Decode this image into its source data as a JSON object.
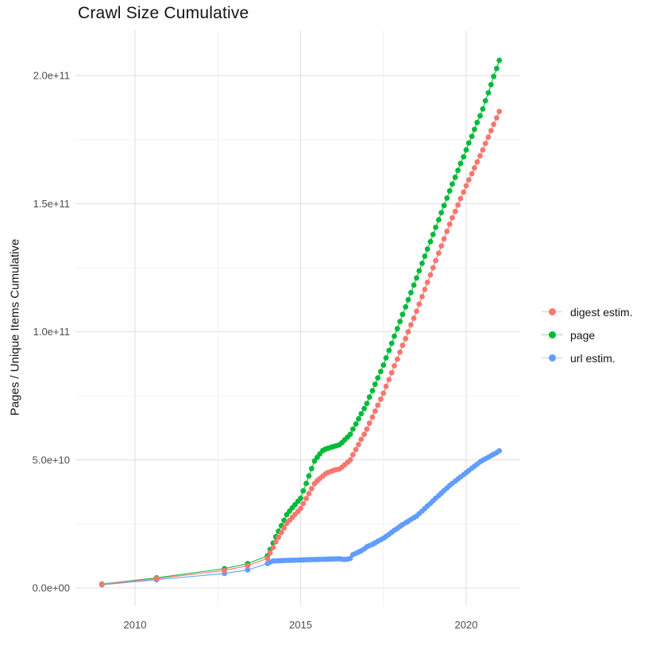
{
  "chart_data": {
    "type": "scatter",
    "title": "Crawl Size Cumulative",
    "xlabel": "",
    "ylabel": "Pages / Unique Items Cumulative",
    "legend_position": "right-center",
    "grid": "major+minor, light gray on white",
    "value_unit": "pages; point values stored in billions (1e9)",
    "xlim": [
      2008.2,
      2021.6
    ],
    "ylim_billions": [
      -7,
      219
    ],
    "x_ticks": [
      {
        "label": "2010",
        "year": 2010
      },
      {
        "label": "2015",
        "year": 2015
      },
      {
        "label": "2020",
        "year": 2020
      }
    ],
    "x_minor_years": [
      2012.5,
      2017.5
    ],
    "y_ticks": [
      {
        "label": "0.0e+00",
        "billions": 0
      },
      {
        "label": "5.0e+10",
        "billions": 50
      },
      {
        "label": "1.0e+11",
        "billions": 100
      },
      {
        "label": "1.5e+11",
        "billions": 150
      },
      {
        "label": "2.0e+11",
        "billions": 200
      }
    ],
    "y_minor_billions": [
      25,
      75,
      125,
      175
    ],
    "colors": {
      "digest": "#F8766D",
      "page": "#00BA38",
      "url": "#619CFF",
      "grid_major": "#E2E2E2",
      "grid_minor": "#F0F0F0",
      "tick_text": "#4D4D4D"
    },
    "series": [
      {
        "name": "digest estim.",
        "color": "#F8766D",
        "points_year_billion": [
          [
            2009.0,
            1.4
          ],
          [
            2010.65,
            3.6
          ],
          [
            2012.7,
            6.8
          ],
          [
            2013.4,
            8.7
          ],
          [
            2014.0,
            11.5
          ],
          [
            2014.08,
            13.7
          ],
          [
            2014.17,
            15.8
          ],
          [
            2014.25,
            18
          ],
          [
            2014.33,
            19.8
          ],
          [
            2014.42,
            21.6
          ],
          [
            2014.5,
            23.4
          ],
          [
            2014.58,
            25.2
          ],
          [
            2014.67,
            26.4
          ],
          [
            2014.75,
            27.5
          ],
          [
            2014.83,
            28.7
          ],
          [
            2014.92,
            29.8
          ],
          [
            2015.0,
            31
          ],
          [
            2015.08,
            32.9
          ],
          [
            2015.17,
            34.9
          ],
          [
            2015.25,
            36.8
          ],
          [
            2015.33,
            38.7
          ],
          [
            2015.42,
            40.7
          ],
          [
            2015.5,
            41.8
          ],
          [
            2015.58,
            42.7
          ],
          [
            2015.67,
            43.6
          ],
          [
            2015.75,
            44.5
          ],
          [
            2015.83,
            45.1
          ],
          [
            2015.92,
            45.5
          ],
          [
            2016.0,
            45.9
          ],
          [
            2016.08,
            46.2
          ],
          [
            2016.17,
            46.4
          ],
          [
            2016.25,
            47.1
          ],
          [
            2016.33,
            48
          ],
          [
            2016.42,
            49
          ],
          [
            2016.5,
            50
          ],
          [
            2016.58,
            52
          ],
          [
            2016.67,
            54
          ],
          [
            2016.75,
            56
          ],
          [
            2016.83,
            58
          ],
          [
            2016.92,
            60
          ],
          [
            2017.0,
            62
          ],
          [
            2017.08,
            64.3
          ],
          [
            2017.17,
            66.7
          ],
          [
            2017.25,
            69
          ],
          [
            2017.33,
            71.3
          ],
          [
            2017.42,
            73.7
          ],
          [
            2017.5,
            76
          ],
          [
            2017.58,
            78.7
          ],
          [
            2017.67,
            81.3
          ],
          [
            2017.75,
            84
          ],
          [
            2017.83,
            86.7
          ],
          [
            2017.92,
            89.3
          ],
          [
            2018.0,
            92
          ],
          [
            2018.08,
            94.7
          ],
          [
            2018.17,
            97.3
          ],
          [
            2018.25,
            100
          ],
          [
            2018.33,
            102.7
          ],
          [
            2018.42,
            105.3
          ],
          [
            2018.5,
            108
          ],
          [
            2018.58,
            110.8
          ],
          [
            2018.67,
            113.7
          ],
          [
            2018.75,
            116.5
          ],
          [
            2018.83,
            119.3
          ],
          [
            2018.92,
            122.2
          ],
          [
            2019.0,
            125
          ],
          [
            2019.08,
            127.8
          ],
          [
            2019.17,
            130.7
          ],
          [
            2019.25,
            133.5
          ],
          [
            2019.33,
            136.3
          ],
          [
            2019.42,
            139.2
          ],
          [
            2019.5,
            142
          ],
          [
            2019.58,
            144.5
          ],
          [
            2019.67,
            147
          ],
          [
            2019.75,
            149.5
          ],
          [
            2019.83,
            152
          ],
          [
            2019.92,
            154.5
          ],
          [
            2020.0,
            157
          ],
          [
            2020.08,
            159.3
          ],
          [
            2020.17,
            161.7
          ],
          [
            2020.25,
            164
          ],
          [
            2020.33,
            166.3
          ],
          [
            2020.42,
            168.7
          ],
          [
            2020.5,
            171
          ],
          [
            2020.58,
            173.5
          ],
          [
            2020.67,
            176
          ],
          [
            2020.75,
            178.5
          ],
          [
            2020.83,
            181
          ],
          [
            2020.92,
            183.5
          ],
          [
            2021.0,
            186
          ]
        ]
      },
      {
        "name": "page",
        "color": "#00BA38",
        "points_year_billion": [
          [
            2009.0,
            1.5
          ],
          [
            2010.65,
            3.9
          ],
          [
            2012.7,
            7.5
          ],
          [
            2013.4,
            9.5
          ],
          [
            2014.0,
            12.5
          ],
          [
            2014.08,
            15
          ],
          [
            2014.17,
            17.5
          ],
          [
            2014.25,
            20
          ],
          [
            2014.33,
            22.1
          ],
          [
            2014.42,
            24.3
          ],
          [
            2014.5,
            26.4
          ],
          [
            2014.58,
            28.6
          ],
          [
            2014.67,
            30
          ],
          [
            2014.75,
            31.3
          ],
          [
            2014.83,
            32.5
          ],
          [
            2014.92,
            33.8
          ],
          [
            2015.0,
            35
          ],
          [
            2015.08,
            37.9
          ],
          [
            2015.17,
            40.8
          ],
          [
            2015.25,
            43.7
          ],
          [
            2015.33,
            46.6
          ],
          [
            2015.42,
            49.5
          ],
          [
            2015.5,
            51
          ],
          [
            2015.58,
            52.3
          ],
          [
            2015.67,
            53.6
          ],
          [
            2015.75,
            54.2
          ],
          [
            2015.83,
            54.5
          ],
          [
            2015.92,
            54.9
          ],
          [
            2016.0,
            55.2
          ],
          [
            2016.08,
            55.5
          ],
          [
            2016.17,
            55.9
          ],
          [
            2016.25,
            56.7
          ],
          [
            2016.33,
            57.8
          ],
          [
            2016.42,
            58.9
          ],
          [
            2016.5,
            60
          ],
          [
            2016.58,
            62
          ],
          [
            2016.67,
            64
          ],
          [
            2016.75,
            66
          ],
          [
            2016.83,
            68
          ],
          [
            2016.92,
            70
          ],
          [
            2017.0,
            72
          ],
          [
            2017.08,
            74.5
          ],
          [
            2017.17,
            77
          ],
          [
            2017.25,
            79.5
          ],
          [
            2017.33,
            82
          ],
          [
            2017.42,
            84.5
          ],
          [
            2017.5,
            87
          ],
          [
            2017.58,
            89.8
          ],
          [
            2017.67,
            92.7
          ],
          [
            2017.75,
            95.5
          ],
          [
            2017.83,
            98.3
          ],
          [
            2017.92,
            101.2
          ],
          [
            2018.0,
            104
          ],
          [
            2018.08,
            106.8
          ],
          [
            2018.17,
            109.7
          ],
          [
            2018.25,
            112.5
          ],
          [
            2018.33,
            115.3
          ],
          [
            2018.42,
            118.2
          ],
          [
            2018.5,
            121
          ],
          [
            2018.58,
            123.8
          ],
          [
            2018.67,
            126.7
          ],
          [
            2018.75,
            129.5
          ],
          [
            2018.83,
            132.3
          ],
          [
            2018.92,
            135.2
          ],
          [
            2019.0,
            138
          ],
          [
            2019.08,
            140.8
          ],
          [
            2019.17,
            143.7
          ],
          [
            2019.25,
            146.5
          ],
          [
            2019.33,
            149.3
          ],
          [
            2019.42,
            152.2
          ],
          [
            2019.5,
            155
          ],
          [
            2019.58,
            157.7
          ],
          [
            2019.67,
            160.3
          ],
          [
            2019.75,
            163
          ],
          [
            2019.83,
            165.7
          ],
          [
            2019.92,
            168.3
          ],
          [
            2020.0,
            171
          ],
          [
            2020.08,
            173.7
          ],
          [
            2020.17,
            176.3
          ],
          [
            2020.25,
            179
          ],
          [
            2020.33,
            181.7
          ],
          [
            2020.42,
            184.3
          ],
          [
            2020.5,
            187
          ],
          [
            2020.58,
            190.2
          ],
          [
            2020.67,
            193.3
          ],
          [
            2020.75,
            196.5
          ],
          [
            2020.83,
            199.7
          ],
          [
            2020.92,
            202.8
          ],
          [
            2021.0,
            206
          ]
        ]
      },
      {
        "name": "url estim.",
        "color": "#619CFF",
        "points_year_billion": [
          [
            2009.0,
            1.2
          ],
          [
            2010.65,
            3.2
          ],
          [
            2012.7,
            5.6
          ],
          [
            2013.4,
            7
          ],
          [
            2014.0,
            9.5
          ],
          [
            2014.08,
            10.1
          ],
          [
            2014.17,
            10.5
          ],
          [
            2014.25,
            10.55
          ],
          [
            2014.33,
            10.6
          ],
          [
            2014.42,
            10.65
          ],
          [
            2014.5,
            10.7
          ],
          [
            2014.58,
            10.72
          ],
          [
            2014.67,
            10.75
          ],
          [
            2014.75,
            10.78
          ],
          [
            2014.83,
            10.82
          ],
          [
            2014.92,
            10.86
          ],
          [
            2015.0,
            10.9
          ],
          [
            2015.08,
            10.93
          ],
          [
            2015.17,
            10.97
          ],
          [
            2015.25,
            11
          ],
          [
            2015.33,
            11.03
          ],
          [
            2015.42,
            11.07
          ],
          [
            2015.5,
            11.1
          ],
          [
            2015.58,
            11.13
          ],
          [
            2015.67,
            11.17
          ],
          [
            2015.75,
            11.2
          ],
          [
            2015.83,
            11.23
          ],
          [
            2015.92,
            11.27
          ],
          [
            2016.0,
            11.3
          ],
          [
            2016.08,
            11.33
          ],
          [
            2016.17,
            11.35
          ],
          [
            2016.25,
            11.2
          ],
          [
            2016.33,
            11.1
          ],
          [
            2016.42,
            11.2
          ],
          [
            2016.5,
            11.5
          ],
          [
            2016.58,
            13
          ],
          [
            2016.67,
            13.5
          ],
          [
            2016.75,
            14
          ],
          [
            2016.83,
            14.5
          ],
          [
            2016.92,
            15.2
          ],
          [
            2017.0,
            16
          ],
          [
            2017.08,
            16.5
          ],
          [
            2017.17,
            17
          ],
          [
            2017.25,
            17.6
          ],
          [
            2017.33,
            18.2
          ],
          [
            2017.42,
            18.8
          ],
          [
            2017.5,
            19.4
          ],
          [
            2017.58,
            20.1
          ],
          [
            2017.67,
            20.9
          ],
          [
            2017.75,
            21.7
          ],
          [
            2017.83,
            22.5
          ],
          [
            2017.92,
            23.2
          ],
          [
            2018.0,
            24
          ],
          [
            2018.08,
            24.7
          ],
          [
            2018.17,
            25.4
          ],
          [
            2018.25,
            26
          ],
          [
            2018.33,
            26.7
          ],
          [
            2018.42,
            27.4
          ],
          [
            2018.5,
            28
          ],
          [
            2018.58,
            29
          ],
          [
            2018.67,
            30
          ],
          [
            2018.75,
            31
          ],
          [
            2018.83,
            32
          ],
          [
            2018.92,
            33
          ],
          [
            2019.0,
            34
          ],
          [
            2019.08,
            35
          ],
          [
            2019.17,
            36
          ],
          [
            2019.25,
            37
          ],
          [
            2019.33,
            38
          ],
          [
            2019.42,
            39
          ],
          [
            2019.5,
            40
          ],
          [
            2019.58,
            40.8
          ],
          [
            2019.67,
            41.7
          ],
          [
            2019.75,
            42.5
          ],
          [
            2019.83,
            43.3
          ],
          [
            2019.92,
            44.2
          ],
          [
            2020.0,
            45
          ],
          [
            2020.08,
            45.8
          ],
          [
            2020.17,
            46.7
          ],
          [
            2020.25,
            47.5
          ],
          [
            2020.33,
            48.3
          ],
          [
            2020.42,
            49.2
          ],
          [
            2020.5,
            49.8
          ],
          [
            2020.58,
            50.4
          ],
          [
            2020.67,
            51
          ],
          [
            2020.75,
            51.6
          ],
          [
            2020.83,
            52.2
          ],
          [
            2020.92,
            52.8
          ],
          [
            2021.0,
            53.5
          ]
        ]
      }
    ]
  }
}
